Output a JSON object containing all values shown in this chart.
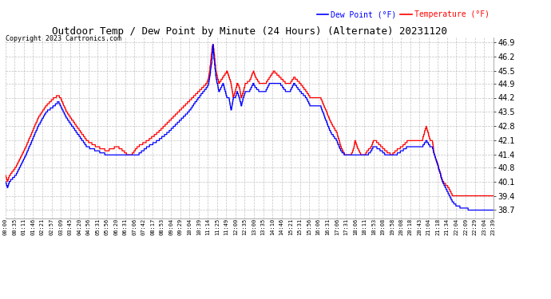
{
  "title": "Outdoor Temp / Dew Point by Minute (24 Hours) (Alternate) 20231120",
  "copyright": "Copyright 2023 Cartronics.com",
  "legend_dew": "Dew Point (°F)",
  "legend_temp": "Temperature (°F)",
  "dew_color": "blue",
  "temp_color": "red",
  "background_color": "#ffffff",
  "grid_color": "#bbbbbb",
  "yticks": [
    38.7,
    39.4,
    40.1,
    40.8,
    41.4,
    42.1,
    42.8,
    43.5,
    44.2,
    44.9,
    45.5,
    46.2,
    46.9
  ],
  "ylim": [
    38.3,
    47.15
  ],
  "n_points": 1440,
  "title_fontsize": 9,
  "copyright_fontsize": 6,
  "ytick_fontsize": 7,
  "xtick_fontsize": 5
}
